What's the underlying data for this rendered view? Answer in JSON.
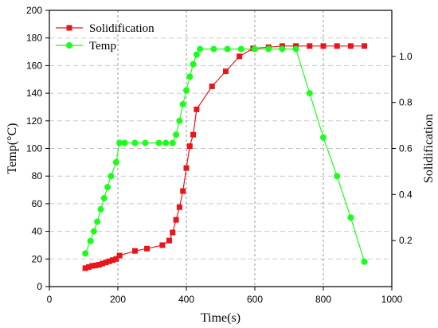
{
  "chart_data": {
    "type": "line",
    "xlabel": "Time(s)",
    "ylabel": "Temp(°C)",
    "y2label": "Solidification",
    "xlim": [
      0,
      1000
    ],
    "ylim": [
      0,
      200
    ],
    "y2lim": [
      0,
      1.2
    ],
    "xticks": [
      0,
      200,
      400,
      600,
      800,
      1000
    ],
    "yticks": [
      0,
      20,
      40,
      60,
      80,
      100,
      120,
      140,
      160,
      180,
      200
    ],
    "y2ticks": [
      0.2,
      0.4,
      0.6,
      0.8,
      1.0
    ],
    "vlines": [
      200,
      400,
      600,
      800
    ],
    "grid": "dashed",
    "legend_position": "top-left",
    "series": [
      {
        "name": "Solidification",
        "axis": "right",
        "color": "#e8151b",
        "marker": "square",
        "x": [
          105,
          115,
          125,
          135,
          145,
          155,
          165,
          175,
          185,
          195,
          205,
          250,
          285,
          330,
          350,
          360,
          370,
          380,
          390,
          400,
          410,
          420,
          430,
          475,
          515,
          555,
          595,
          640,
          680,
          720,
          760,
          800,
          840,
          880,
          920
        ],
        "y": [
          0.08,
          0.085,
          0.09,
          0.092,
          0.095,
          0.1,
          0.105,
          0.11,
          0.115,
          0.12,
          0.135,
          0.155,
          0.165,
          0.18,
          0.2,
          0.235,
          0.29,
          0.345,
          0.415,
          0.515,
          0.61,
          0.66,
          0.77,
          0.87,
          0.935,
          1.0,
          1.035,
          1.04,
          1.045,
          1.045,
          1.045,
          1.045,
          1.045,
          1.045,
          1.045
        ]
      },
      {
        "name": "Temp",
        "axis": "left",
        "color": "#1aff1a",
        "marker": "circle",
        "x": [
          105,
          120,
          130,
          140,
          150,
          160,
          170,
          180,
          195,
          205,
          220,
          250,
          280,
          320,
          340,
          360,
          370,
          380,
          390,
          400,
          410,
          420,
          430,
          440,
          480,
          520,
          560,
          600,
          640,
          680,
          720,
          760,
          800,
          840,
          880,
          920
        ],
        "y": [
          24,
          33,
          40,
          47,
          56,
          64,
          72,
          80,
          90,
          104,
          104,
          104,
          104,
          104,
          104,
          104,
          110,
          120,
          132,
          142,
          152,
          161,
          168,
          172,
          172,
          172,
          172,
          172,
          172,
          172,
          172,
          140,
          108,
          80,
          50,
          18
        ]
      }
    ]
  }
}
